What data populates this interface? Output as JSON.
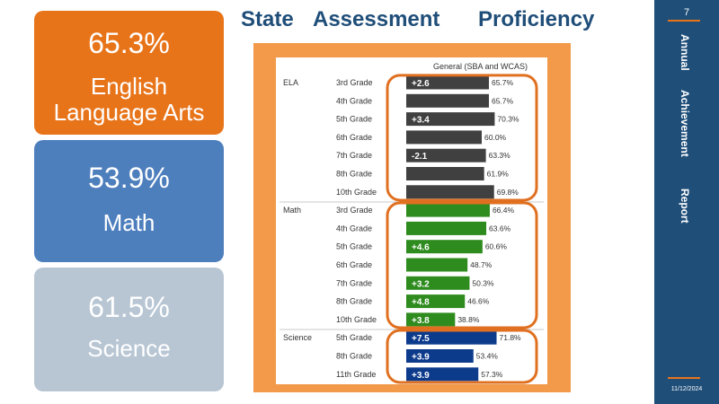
{
  "title": {
    "word1": "State",
    "word2": "Assessment",
    "word3": "Proficiency"
  },
  "cards": {
    "ela": {
      "percent": "65.3%",
      "label_line1": "English",
      "label_line2": "Language  Arts",
      "color": "#e8741a"
    },
    "math": {
      "percent": "53.9%",
      "label": "Math",
      "color": "#4e7fbd"
    },
    "science": {
      "percent": "61.5%",
      "label": "Science",
      "color": "#b8c6d4"
    }
  },
  "sidebar": {
    "slide_number": "7",
    "word1": "Annual",
    "word2": "Achievement",
    "word3": "Report",
    "date": "11/12/2024",
    "color": "#1f4e79",
    "accent": "#e8741a"
  },
  "chart_data": {
    "type": "bar",
    "orientation": "horizontal",
    "column_header": "General (SBA and WCAS)",
    "groups": [
      {
        "name": "ELA",
        "color": "#404040",
        "rows": [
          {
            "grade": "3rd Grade",
            "value": 65.7,
            "value_label": "65.7%",
            "change": "+2.6"
          },
          {
            "grade": "4th Grade",
            "value": 65.7,
            "value_label": "65.7%",
            "change": ""
          },
          {
            "grade": "5th Grade",
            "value": 70.3,
            "value_label": "70.3%",
            "change": "+3.4"
          },
          {
            "grade": "6th Grade",
            "value": 60.0,
            "value_label": "60.0%",
            "change": ""
          },
          {
            "grade": "7th Grade",
            "value": 63.3,
            "value_label": "63.3%",
            "change": "-2.1"
          },
          {
            "grade": "8th Grade",
            "value": 61.9,
            "value_label": "61.9%",
            "change": ""
          },
          {
            "grade": "10th Grade",
            "value": 69.8,
            "value_label": "69.8%",
            "change": ""
          }
        ]
      },
      {
        "name": "Math",
        "color": "#2e8b1e",
        "rows": [
          {
            "grade": "3rd Grade",
            "value": 66.4,
            "value_label": "66.4%",
            "change": ""
          },
          {
            "grade": "4th Grade",
            "value": 63.6,
            "value_label": "63.6%",
            "change": ""
          },
          {
            "grade": "5th Grade",
            "value": 60.6,
            "value_label": "60.6%",
            "change": "+4.6"
          },
          {
            "grade": "6th Grade",
            "value": 48.7,
            "value_label": "48.7%",
            "change": ""
          },
          {
            "grade": "7th Grade",
            "value": 50.3,
            "value_label": "50.3%",
            "change": "+3.2"
          },
          {
            "grade": "8th Grade",
            "value": 46.6,
            "value_label": "46.6%",
            "change": "+4.8"
          },
          {
            "grade": "10th Grade",
            "value": 38.8,
            "value_label": "38.8%",
            "change": "+3.8"
          }
        ]
      },
      {
        "name": "Science",
        "color": "#0d3b8c",
        "rows": [
          {
            "grade": "5th Grade",
            "value": 71.8,
            "value_label": "71.8%",
            "change": "+7.5"
          },
          {
            "grade": "8th Grade",
            "value": 53.4,
            "value_label": "53.4%",
            "change": "+3.9"
          },
          {
            "grade": "11th Grade",
            "value": 57.3,
            "value_label": "57.3%",
            "change": "+3.9"
          }
        ]
      }
    ],
    "highlight_color": "#e07020",
    "xlim": [
      0,
      100
    ]
  }
}
